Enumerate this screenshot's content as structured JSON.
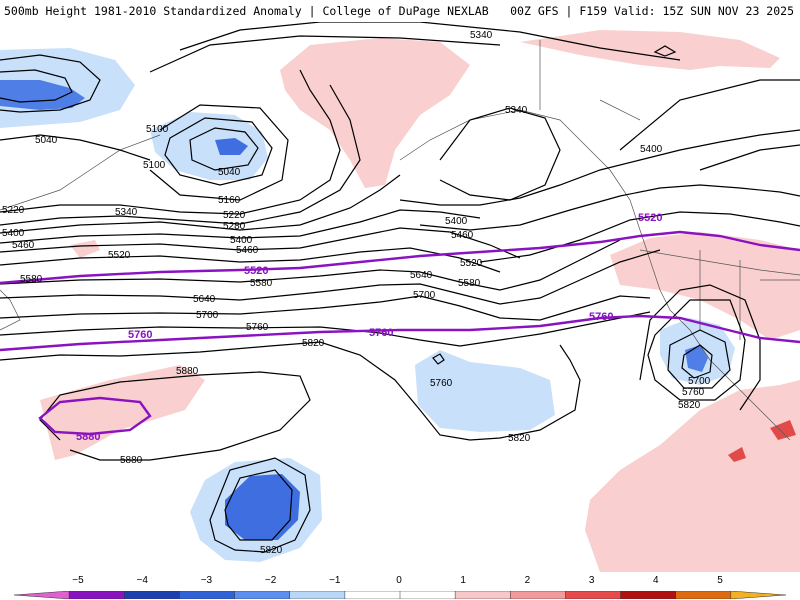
{
  "header": {
    "title_left": "500mb Height 1981-2010 Standardized Anomaly | College of DuPage NEXLAB",
    "title_right": "00Z GFS | F159 Valid: 15Z SUN NOV 23 2025"
  },
  "contour_labels": {
    "c5340a": "5340",
    "c5340b": "5340",
    "c5340c": "5340",
    "c5040a": "5040",
    "c5040b": "5040",
    "c5100a": "5100",
    "c5100b": "5100",
    "c5160": "5160",
    "c5220a": "5220",
    "c5220b": "5220",
    "c5280": "5280",
    "c5400a": "5400",
    "c5400b": "5400",
    "c5400c": "5400",
    "c5400d": "5400",
    "c5460a": "5460",
    "c5460b": "5460",
    "c5460c": "5460",
    "c5520a": "5520",
    "c5520b": "5520",
    "c5580a": "5580",
    "c5580b": "5580",
    "c5580c": "5580",
    "c5640a": "5640",
    "c5640b": "5640",
    "c5700a": "5700",
    "c5700b": "5700",
    "c5700c": "5700",
    "c5760a": "5760",
    "c5760b": "5760",
    "c5760c": "5760",
    "c5820a": "5820",
    "c5820b": "5820",
    "c5820c": "5820",
    "c5820d": "5820",
    "c5880a": "5880",
    "c5880b": "5880"
  },
  "highlight_labels": {
    "p5520a": "5520",
    "p5520b": "5520",
    "p5760a": "5760",
    "p5760b": "5760",
    "p5760c": "5760",
    "p5880": "5880"
  },
  "colorbar": {
    "ticks": [
      "−5",
      "−4",
      "−3",
      "−2",
      "−1",
      "0",
      "1",
      "2",
      "3",
      "4",
      "5"
    ],
    "colors": [
      "#e060d0",
      "#8a12c0",
      "#1b3fb0",
      "#2f62d8",
      "#5b8ff0",
      "#b8d8f8",
      "#ffffff",
      "#ffffff",
      "#f8c8c8",
      "#f39a9a",
      "#e64a4a",
      "#b01010",
      "#e06a10",
      "#f3b020"
    ]
  }
}
